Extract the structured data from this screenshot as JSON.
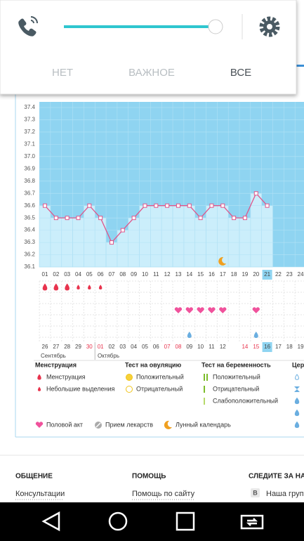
{
  "quick_panel": {
    "tabs": [
      "НЕТ",
      "ВАЖНОЕ",
      "ВСЕ"
    ]
  },
  "chart_data": {
    "type": "line",
    "categories": [
      "01",
      "02",
      "03",
      "04",
      "05",
      "06",
      "07",
      "08",
      "09",
      "10",
      "11",
      "12",
      "13",
      "14",
      "15",
      "16",
      "17",
      "18",
      "19",
      "20",
      "21",
      "22",
      "23",
      "24"
    ],
    "values": [
      36.6,
      36.5,
      36.5,
      36.5,
      36.6,
      36.5,
      36.3,
      36.4,
      36.5,
      36.6,
      36.6,
      36.6,
      36.6,
      36.6,
      36.5,
      36.6,
      36.6,
      36.5,
      36.5,
      36.7,
      36.6,
      null,
      null,
      null
    ],
    "ylim": [
      36.1,
      37.4
    ],
    "yticks": [
      {
        "value": 36.1,
        "label": "36.1"
      },
      36.2,
      36.3,
      36.4,
      36.5,
      36.6,
      36.7,
      36.8,
      36.9,
      {
        "value": 37,
        "label": "37.0"
      },
      37.1,
      37.2,
      37.3,
      37.4
    ],
    "color": "#e0558a",
    "highlight": 20,
    "dates": [
      "26",
      "27",
      "28",
      "29",
      "30",
      "01",
      "02",
      "03",
      "04",
      "05",
      "06",
      "07",
      "08",
      "09",
      "10",
      "11",
      "12",
      null,
      "14",
      "15",
      "16",
      "17",
      "18",
      "19"
    ],
    "months": [
      "Сентябрь",
      "Октябрь"
    ]
  },
  "legend": {
    "groups": [
      {
        "title": "Менструация",
        "items": [
          "Менструация",
          "Небольшие выделения"
        ]
      },
      {
        "title": "Тест на овуляцию",
        "items": [
          "Положительный",
          "Отрицательный"
        ]
      },
      {
        "title": "Тест на беременность",
        "items": [
          "Положительный",
          "Отрицательный",
          "Слабоположительный"
        ]
      },
      {
        "title": "Цер",
        "items": []
      }
    ],
    "extra": [
      "Половой акт",
      "Прием лекарств",
      "Лунный календарь"
    ]
  },
  "footer": {
    "columns": [
      {
        "title": "ОБЩЕНИЕ",
        "link": "Консультации"
      },
      {
        "title": "ПОМОЩЬ",
        "link": "Помощь по сайту"
      },
      {
        "title": "СЛЕДИТЕ ЗА НА",
        "badge": "В",
        "link": "Наша груп"
      }
    ]
  }
}
